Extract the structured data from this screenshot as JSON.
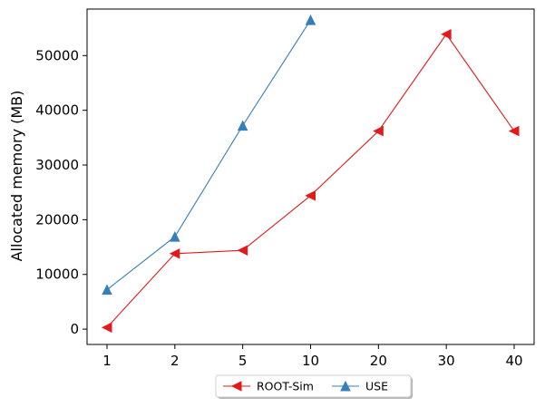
{
  "chart_data": {
    "type": "line",
    "title": "",
    "xlabel": "",
    "ylabel": "Allocated memory (MB)",
    "categories": [
      "1",
      "2",
      "5",
      "10",
      "20",
      "30",
      "40"
    ],
    "ylim": [
      -2800,
      58500
    ],
    "yticks": [
      0,
      10000,
      20000,
      30000,
      40000,
      50000
    ],
    "grid": false,
    "legend_position": "bottom-center",
    "series": [
      {
        "name": "ROOT-Sim",
        "color": "#e31a1c",
        "marker": "triangle-left",
        "values": [
          300,
          13800,
          14400,
          24400,
          36200,
          53900,
          36200
        ]
      },
      {
        "name": "USE",
        "color": "#377eb8",
        "marker": "triangle-up",
        "values": [
          7200,
          16900,
          37200,
          56500,
          null,
          null,
          null
        ]
      }
    ]
  }
}
